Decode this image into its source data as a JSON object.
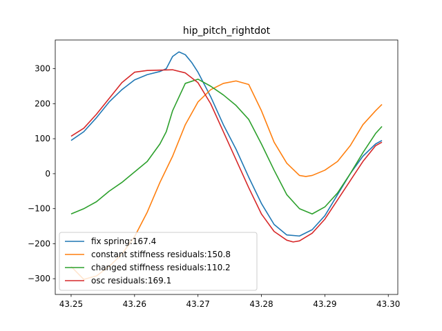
{
  "chart_data": {
    "type": "line",
    "title": "hip_pitch_rightdot",
    "xlabel": "",
    "ylabel": "",
    "xlim": [
      43.2475,
      43.3015
    ],
    "ylim": [
      -345,
      382
    ],
    "xticks": [
      43.25,
      43.26,
      43.27,
      43.28,
      43.29,
      43.3
    ],
    "xtick_labels": [
      "43.25",
      "43.26",
      "43.27",
      "43.28",
      "43.29",
      "43.30"
    ],
    "yticks": [
      -300,
      -200,
      -100,
      0,
      100,
      200,
      300
    ],
    "ytick_labels": [
      "−300",
      "−200",
      "−100",
      "0",
      "100",
      "200",
      "300"
    ],
    "grid": false,
    "legend_position": "lower-left",
    "series": [
      {
        "name": "fix spring:167.4",
        "color": "#1f77b4",
        "x": [
          43.25,
          43.252,
          43.254,
          43.256,
          43.258,
          43.26,
          43.262,
          43.264,
          43.265,
          43.266,
          43.267,
          43.268,
          43.269,
          43.27,
          43.272,
          43.274,
          43.276,
          43.278,
          43.28,
          43.282,
          43.284,
          43.286,
          43.288,
          43.29,
          43.292,
          43.294,
          43.296,
          43.298,
          43.299
        ],
        "y": [
          95,
          120,
          160,
          205,
          240,
          268,
          283,
          292,
          300,
          335,
          348,
          340,
          318,
          290,
          220,
          140,
          70,
          -10,
          -85,
          -145,
          -175,
          -178,
          -160,
          -120,
          -60,
          0,
          50,
          85,
          95
        ]
      },
      {
        "name": "constant stiffness residuals:150.8",
        "color": "#ff7f0e",
        "x": [
          43.25,
          43.252,
          43.254,
          43.256,
          43.258,
          43.26,
          43.262,
          43.264,
          43.266,
          43.268,
          43.27,
          43.272,
          43.274,
          43.276,
          43.278,
          43.28,
          43.282,
          43.284,
          43.286,
          43.287,
          43.288,
          43.29,
          43.292,
          43.294,
          43.296,
          43.298,
          43.299
        ],
        "y": [
          -265,
          -302,
          -292,
          -265,
          -230,
          -180,
          -110,
          -25,
          50,
          140,
          205,
          240,
          258,
          265,
          255,
          180,
          90,
          30,
          -5,
          -8,
          -5,
          10,
          35,
          80,
          140,
          180,
          198
        ]
      },
      {
        "name": "changed stiffness residuals:110.2",
        "color": "#2ca02c",
        "x": [
          43.25,
          43.252,
          43.254,
          43.256,
          43.258,
          43.26,
          43.262,
          43.264,
          43.265,
          43.266,
          43.268,
          43.27,
          43.272,
          43.274,
          43.276,
          43.278,
          43.28,
          43.282,
          43.284,
          43.286,
          43.288,
          43.29,
          43.292,
          43.294,
          43.296,
          43.298,
          43.299
        ],
        "y": [
          -115,
          -100,
          -80,
          -50,
          -25,
          5,
          35,
          85,
          120,
          180,
          258,
          270,
          250,
          225,
          195,
          155,
          85,
          10,
          -60,
          -100,
          -115,
          -95,
          -55,
          0,
          60,
          115,
          135
        ]
      },
      {
        "name": "osc residuals:169.1",
        "color": "#d62728",
        "x": [
          43.25,
          43.252,
          43.254,
          43.256,
          43.258,
          43.26,
          43.262,
          43.264,
          43.266,
          43.268,
          43.27,
          43.272,
          43.274,
          43.276,
          43.278,
          43.28,
          43.282,
          43.284,
          43.285,
          43.286,
          43.288,
          43.29,
          43.292,
          43.294,
          43.296,
          43.298,
          43.299
        ],
        "y": [
          107,
          130,
          170,
          215,
          260,
          290,
          295,
          296,
          297,
          288,
          260,
          200,
          120,
          40,
          -40,
          -115,
          -165,
          -190,
          -195,
          -192,
          -170,
          -130,
          -75,
          -20,
          35,
          80,
          90
        ]
      }
    ]
  }
}
